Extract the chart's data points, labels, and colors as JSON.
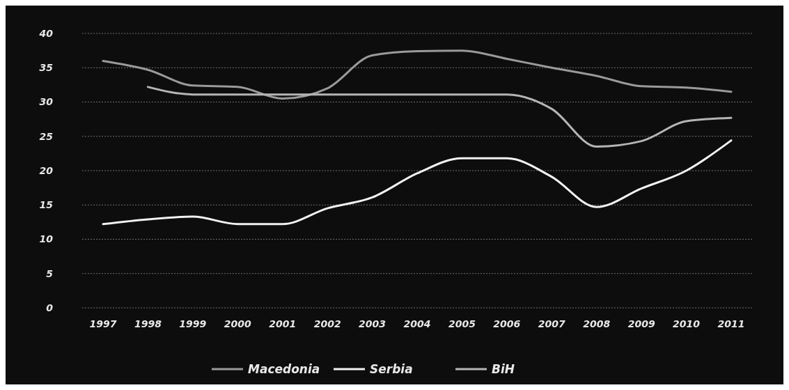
{
  "chart_data": {
    "type": "line",
    "categories": [
      "1997",
      "1998",
      "1999",
      "2000",
      "2001",
      "2002",
      "2003",
      "2004",
      "2005",
      "2006",
      "2007",
      "2008",
      "2009",
      "2010",
      "2011"
    ],
    "series": [
      {
        "name": "Macedonia",
        "color": "#9a9a9a",
        "values": [
          36.0,
          34.7,
          32.4,
          32.2,
          30.5,
          32.0,
          36.8,
          37.4,
          37.5,
          36.3,
          35.0,
          33.8,
          32.3,
          32.1,
          31.5
        ]
      },
      {
        "name": "Serbia",
        "color": "#f2f2f2",
        "values": [
          12.2,
          12.9,
          13.3,
          12.2,
          12.2,
          14.5,
          16.1,
          19.6,
          21.8,
          21.8,
          19.1,
          14.7,
          17.4,
          20.0,
          24.4
        ]
      },
      {
        "name": "BiH",
        "color": "#b5b5b5",
        "values": [
          null,
          32.2,
          31.1,
          31.1,
          31.1,
          31.1,
          31.1,
          31.1,
          31.1,
          31.1,
          29.0,
          23.5,
          24.3,
          27.2,
          27.7
        ]
      }
    ],
    "ylim": [
      0,
      40
    ],
    "yticks": [
      0,
      5,
      10,
      15,
      20,
      25,
      30,
      35,
      40
    ],
    "grid": "y",
    "legend": "bottom",
    "marker": "none",
    "line_style": "solid"
  }
}
